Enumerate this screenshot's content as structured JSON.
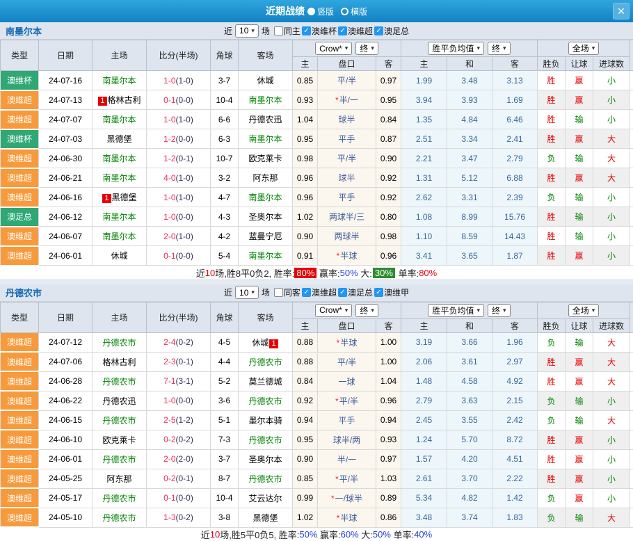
{
  "titlebar": {
    "title": "近期战绩",
    "radio_vertical": "竖版",
    "radio_horizontal": "横版",
    "close_label": "✕"
  },
  "headers": {
    "type": "类型",
    "date": "日期",
    "home": "主场",
    "score": "比分(半场)",
    "corner": "角球",
    "away": "客场",
    "h": "主",
    "handicap": "盘口",
    "a": "客",
    "avg_h": "主",
    "avg_d": "和",
    "avg_a": "客",
    "result": "胜负",
    "let": "让球",
    "goals": "进球数"
  },
  "colors": {
    "accent_blue": "#1181c3",
    "badge_green": "#2fa876",
    "badge_orange": "#f79a3c",
    "focus_team_green": "#008000",
    "score_red": "#ee2c50",
    "win_red": "#e60000"
  },
  "sections": [
    {
      "team": "南墨尔本",
      "filter": {
        "near_label": "近",
        "count": "10",
        "games_label": "场",
        "checks": [
          {
            "label": "同主",
            "checked": false
          },
          {
            "label": "澳维杯",
            "checked": true
          },
          {
            "label": "澳维超",
            "checked": true
          },
          {
            "label": "澳足总",
            "checked": true
          }
        ]
      },
      "dropdowns": {
        "company": "Crow*",
        "company_state": "终",
        "avg": "胜平负均值",
        "avg_state": "终",
        "scope": "全场"
      },
      "rows": [
        {
          "comp": "澳维杯",
          "comp_color": "green",
          "date": "24-07-16",
          "home": "南墨尔本",
          "home_focus": true,
          "home_badge": "",
          "score": "1-0",
          "half": "(1-0)",
          "corner": "3-7",
          "away": "休城",
          "away_focus": false,
          "away_badge": "",
          "odds_home": "0.85",
          "star": false,
          "handicap": "平/半",
          "odds_away": "0.97",
          "avg_home": "1.99",
          "avg_draw": "3.48",
          "avg_away": "3.13",
          "result": "胜",
          "let_result": "赢",
          "goals": "小"
        },
        {
          "comp": "澳维超",
          "comp_color": "orange",
          "date": "24-07-13",
          "home": "格林古利",
          "home_focus": false,
          "home_badge": "1",
          "score": "0-1",
          "half": "(0-0)",
          "corner": "10-4",
          "away": "南墨尔本",
          "away_focus": true,
          "away_badge": "",
          "odds_home": "0.93",
          "star": true,
          "handicap": "半/一",
          "odds_away": "0.95",
          "avg_home": "3.94",
          "avg_draw": "3.93",
          "avg_away": "1.69",
          "result": "胜",
          "let_result": "赢",
          "goals": "小"
        },
        {
          "comp": "澳维超",
          "comp_color": "orange",
          "date": "24-07-07",
          "home": "南墨尔本",
          "home_focus": true,
          "home_badge": "",
          "score": "1-0",
          "half": "(1-0)",
          "corner": "6-6",
          "away": "丹德农迅",
          "away_focus": false,
          "away_badge": "",
          "odds_home": "1.04",
          "star": false,
          "handicap": "球半",
          "odds_away": "0.84",
          "avg_home": "1.35",
          "avg_draw": "4.84",
          "avg_away": "6.46",
          "result": "胜",
          "let_result": "输",
          "goals": "小"
        },
        {
          "comp": "澳维杯",
          "comp_color": "green",
          "date": "24-07-03",
          "home": "黑德堡",
          "home_focus": false,
          "home_badge": "",
          "score": "1-2",
          "half": "(0-0)",
          "corner": "6-3",
          "away": "南墨尔本",
          "away_focus": true,
          "away_badge": "",
          "odds_home": "0.95",
          "star": false,
          "handicap": "平手",
          "odds_away": "0.87",
          "avg_home": "2.51",
          "avg_draw": "3.34",
          "avg_away": "2.41",
          "result": "胜",
          "let_result": "赢",
          "goals": "大"
        },
        {
          "comp": "澳维超",
          "comp_color": "orange",
          "date": "24-06-30",
          "home": "南墨尔本",
          "home_focus": true,
          "home_badge": "",
          "score": "1-2",
          "half": "(0-1)",
          "corner": "10-7",
          "away": "欧克莱卡",
          "away_focus": false,
          "away_badge": "",
          "odds_home": "0.98",
          "star": false,
          "handicap": "平/半",
          "odds_away": "0.90",
          "avg_home": "2.21",
          "avg_draw": "3.47",
          "avg_away": "2.79",
          "result": "负",
          "let_result": "输",
          "goals": "大"
        },
        {
          "comp": "澳维超",
          "comp_color": "orange",
          "date": "24-06-21",
          "home": "南墨尔本",
          "home_focus": true,
          "home_badge": "",
          "score": "4-0",
          "half": "(1-0)",
          "corner": "3-2",
          "away": "阿东那",
          "away_focus": false,
          "away_badge": "",
          "odds_home": "0.96",
          "star": false,
          "handicap": "球半",
          "odds_away": "0.92",
          "avg_home": "1.31",
          "avg_draw": "5.12",
          "avg_away": "6.88",
          "result": "胜",
          "let_result": "赢",
          "goals": "大"
        },
        {
          "comp": "澳维超",
          "comp_color": "orange",
          "date": "24-06-16",
          "home": "黑德堡",
          "home_focus": false,
          "home_badge": "1",
          "score": "1-0",
          "half": "(1-0)",
          "corner": "4-7",
          "away": "南墨尔本",
          "away_focus": true,
          "away_badge": "",
          "odds_home": "0.96",
          "star": false,
          "handicap": "平手",
          "odds_away": "0.92",
          "avg_home": "2.62",
          "avg_draw": "3.31",
          "avg_away": "2.39",
          "result": "负",
          "let_result": "输",
          "goals": "小"
        },
        {
          "comp": "澳足总",
          "comp_color": "green",
          "date": "24-06-12",
          "home": "南墨尔本",
          "home_focus": true,
          "home_badge": "",
          "score": "1-0",
          "half": "(0-0)",
          "corner": "4-3",
          "away": "圣奥尔本",
          "away_focus": false,
          "away_badge": "",
          "odds_home": "1.02",
          "star": false,
          "handicap": "两球半/三",
          "odds_away": "0.80",
          "avg_home": "1.08",
          "avg_draw": "8.99",
          "avg_away": "15.76",
          "result": "胜",
          "let_result": "输",
          "goals": "小"
        },
        {
          "comp": "澳维超",
          "comp_color": "orange",
          "date": "24-06-07",
          "home": "南墨尔本",
          "home_focus": true,
          "home_badge": "",
          "score": "2-0",
          "half": "(1-0)",
          "corner": "4-2",
          "away": "蓝曼宁厄",
          "away_focus": false,
          "away_badge": "",
          "odds_home": "0.90",
          "star": false,
          "handicap": "两球半",
          "odds_away": "0.98",
          "avg_home": "1.10",
          "avg_draw": "8.59",
          "avg_away": "14.43",
          "result": "胜",
          "let_result": "输",
          "goals": "小"
        },
        {
          "comp": "澳维超",
          "comp_color": "orange",
          "date": "24-06-01",
          "home": "休城",
          "home_focus": false,
          "home_badge": "",
          "score": "0-1",
          "half": "(0-0)",
          "corner": "5-4",
          "away": "南墨尔本",
          "away_focus": true,
          "away_badge": "",
          "odds_home": "0.91",
          "star": true,
          "handicap": "半球",
          "odds_away": "0.96",
          "avg_home": "3.41",
          "avg_draw": "3.65",
          "avg_away": "1.87",
          "result": "胜",
          "let_result": "赢",
          "goals": "小"
        }
      ],
      "summary": [
        {
          "t": "近",
          "c": "k"
        },
        {
          "t": "10",
          "c": "red"
        },
        {
          "t": "场,胜8平0负2, 胜率:",
          "c": "k"
        },
        {
          "t": "80%",
          "c": "bred"
        },
        {
          "t": " 赢率:",
          "c": "k"
        },
        {
          "t": "50%",
          "c": "blue"
        },
        {
          "t": " 大:",
          "c": "k"
        },
        {
          "t": "30%",
          "c": "bgreen"
        },
        {
          "t": " 单率:",
          "c": "k"
        },
        {
          "t": "80%",
          "c": "red"
        }
      ]
    },
    {
      "team": "丹德农市",
      "filter": {
        "near_label": "近",
        "count": "10",
        "games_label": "场",
        "checks": [
          {
            "label": "同客",
            "checked": false
          },
          {
            "label": "澳维超",
            "checked": true
          },
          {
            "label": "澳足总",
            "checked": true
          },
          {
            "label": "澳维甲",
            "checked": true
          }
        ]
      },
      "dropdowns": {
        "company": "Crow*",
        "company_state": "终",
        "avg": "胜平负均值",
        "avg_state": "终",
        "scope": "全场"
      },
      "rows": [
        {
          "comp": "澳维超",
          "comp_color": "orange",
          "date": "24-07-12",
          "home": "丹德农市",
          "home_focus": true,
          "home_badge": "",
          "score": "2-4",
          "half": "(0-2)",
          "corner": "4-5",
          "away": "休城",
          "away_focus": false,
          "away_badge": "1",
          "odds_home": "0.88",
          "star": true,
          "handicap": "半球",
          "odds_away": "1.00",
          "avg_home": "3.19",
          "avg_draw": "3.66",
          "avg_away": "1.96",
          "result": "负",
          "let_result": "输",
          "goals": "大"
        },
        {
          "comp": "澳维超",
          "comp_color": "orange",
          "date": "24-07-06",
          "home": "格林古利",
          "home_focus": false,
          "home_badge": "",
          "score": "2-3",
          "half": "(0-1)",
          "corner": "4-4",
          "away": "丹德农市",
          "away_focus": true,
          "away_badge": "",
          "odds_home": "0.88",
          "star": false,
          "handicap": "平/半",
          "odds_away": "1.00",
          "avg_home": "2.06",
          "avg_draw": "3.61",
          "avg_away": "2.97",
          "result": "胜",
          "let_result": "赢",
          "goals": "大"
        },
        {
          "comp": "澳维超",
          "comp_color": "orange",
          "date": "24-06-28",
          "home": "丹德农市",
          "home_focus": true,
          "home_badge": "",
          "score": "7-1",
          "half": "(3-1)",
          "corner": "5-2",
          "away": "莫兰德城",
          "away_focus": false,
          "away_badge": "",
          "odds_home": "0.84",
          "star": false,
          "handicap": "一球",
          "odds_away": "1.04",
          "avg_home": "1.48",
          "avg_draw": "4.58",
          "avg_away": "4.92",
          "result": "胜",
          "let_result": "赢",
          "goals": "大"
        },
        {
          "comp": "澳维超",
          "comp_color": "orange",
          "date": "24-06-22",
          "home": "丹德农迅",
          "home_focus": false,
          "home_badge": "",
          "score": "1-0",
          "half": "(0-0)",
          "corner": "3-6",
          "away": "丹德农市",
          "away_focus": true,
          "away_badge": "",
          "odds_home": "0.92",
          "star": true,
          "handicap": "平/半",
          "odds_away": "0.96",
          "avg_home": "2.79",
          "avg_draw": "3.63",
          "avg_away": "2.15",
          "result": "负",
          "let_result": "输",
          "goals": "小"
        },
        {
          "comp": "澳维超",
          "comp_color": "orange",
          "date": "24-06-15",
          "home": "丹德农市",
          "home_focus": true,
          "home_badge": "",
          "score": "2-5",
          "half": "(1-2)",
          "corner": "5-1",
          "away": "墨尔本骑",
          "away_focus": false,
          "away_badge": "",
          "odds_home": "0.94",
          "star": false,
          "handicap": "平手",
          "odds_away": "0.94",
          "avg_home": "2.45",
          "avg_draw": "3.55",
          "avg_away": "2.42",
          "result": "负",
          "let_result": "输",
          "goals": "大"
        },
        {
          "comp": "澳维超",
          "comp_color": "orange",
          "date": "24-06-10",
          "home": "欧克莱卡",
          "home_focus": false,
          "home_badge": "",
          "score": "0-2",
          "half": "(0-2)",
          "corner": "7-3",
          "away": "丹德农市",
          "away_focus": true,
          "away_badge": "",
          "odds_home": "0.95",
          "star": false,
          "handicap": "球半/两",
          "odds_away": "0.93",
          "avg_home": "1.24",
          "avg_draw": "5.70",
          "avg_away": "8.72",
          "result": "胜",
          "let_result": "赢",
          "goals": "小"
        },
        {
          "comp": "澳维超",
          "comp_color": "orange",
          "date": "24-06-01",
          "home": "丹德农市",
          "home_focus": true,
          "home_badge": "",
          "score": "2-0",
          "half": "(2-0)",
          "corner": "3-7",
          "away": "圣奥尔本",
          "away_focus": false,
          "away_badge": "",
          "odds_home": "0.90",
          "star": false,
          "handicap": "半/一",
          "odds_away": "0.97",
          "avg_home": "1.57",
          "avg_draw": "4.20",
          "avg_away": "4.51",
          "result": "胜",
          "let_result": "赢",
          "goals": "小"
        },
        {
          "comp": "澳维超",
          "comp_color": "orange",
          "date": "24-05-25",
          "home": "阿东那",
          "home_focus": false,
          "home_badge": "",
          "score": "0-2",
          "half": "(0-1)",
          "corner": "8-7",
          "away": "丹德农市",
          "away_focus": true,
          "away_badge": "",
          "odds_home": "0.85",
          "star": true,
          "handicap": "平/半",
          "odds_away": "1.03",
          "avg_home": "2.61",
          "avg_draw": "3.70",
          "avg_away": "2.22",
          "result": "胜",
          "let_result": "赢",
          "goals": "小"
        },
        {
          "comp": "澳维超",
          "comp_color": "orange",
          "date": "24-05-17",
          "home": "丹德农市",
          "home_focus": true,
          "home_badge": "",
          "score": "0-1",
          "half": "(0-0)",
          "corner": "10-4",
          "away": "艾云达尔",
          "away_focus": false,
          "away_badge": "",
          "odds_home": "0.99",
          "star": true,
          "handicap": "一/球半",
          "odds_away": "0.89",
          "avg_home": "5.34",
          "avg_draw": "4.82",
          "avg_away": "1.42",
          "result": "负",
          "let_result": "赢",
          "goals": "小"
        },
        {
          "comp": "澳维超",
          "comp_color": "orange",
          "date": "24-05-10",
          "home": "丹德农市",
          "home_focus": true,
          "home_badge": "",
          "score": "1-3",
          "half": "(0-2)",
          "corner": "3-8",
          "away": "黑德堡",
          "away_focus": false,
          "away_badge": "",
          "odds_home": "1.02",
          "star": true,
          "handicap": "半球",
          "odds_away": "0.86",
          "avg_home": "3.48",
          "avg_draw": "3.74",
          "avg_away": "1.83",
          "result": "负",
          "let_result": "输",
          "goals": "大"
        }
      ],
      "summary": [
        {
          "t": "近",
          "c": "k"
        },
        {
          "t": "10",
          "c": "red"
        },
        {
          "t": "场,胜5平0负5, 胜率:",
          "c": "k"
        },
        {
          "t": "50%",
          "c": "blue"
        },
        {
          "t": " 赢率:",
          "c": "k"
        },
        {
          "t": "60%",
          "c": "blue"
        },
        {
          "t": " 大:",
          "c": "k"
        },
        {
          "t": "50%",
          "c": "blue"
        },
        {
          "t": " 单率:",
          "c": "k"
        },
        {
          "t": "40%",
          "c": "blue"
        }
      ]
    }
  ]
}
